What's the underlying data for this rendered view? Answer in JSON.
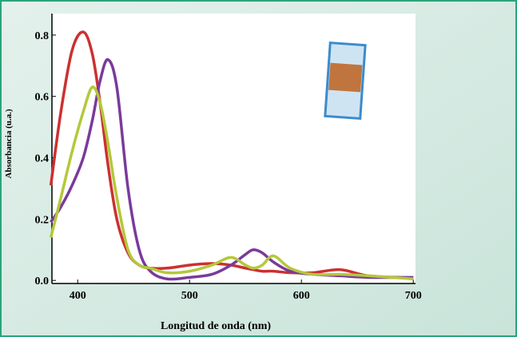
{
  "chart_data": {
    "type": "line",
    "x_label": "Longitud de onda (nm)",
    "y_label": "Absorbancia (u.a.)",
    "x": [
      376,
      385,
      395,
      405,
      413,
      420,
      427,
      435,
      445,
      455,
      465,
      480,
      500,
      520,
      537,
      550,
      557,
      565,
      575,
      590,
      610,
      635,
      660,
      700
    ],
    "series": [
      {
        "color": "#cc3030",
        "values": [
          0.31,
          0.55,
          0.75,
          0.81,
          0.74,
          0.58,
          0.38,
          0.2,
          0.09,
          0.05,
          0.04,
          0.04,
          0.05,
          0.055,
          0.05,
          0.04,
          0.035,
          0.03,
          0.03,
          0.025,
          0.025,
          0.035,
          0.015,
          0.008
        ]
      },
      {
        "color": "#7a3a9c",
        "values": [
          0.19,
          0.24,
          0.31,
          0.4,
          0.52,
          0.65,
          0.72,
          0.63,
          0.3,
          0.1,
          0.03,
          0.005,
          0.01,
          0.02,
          0.05,
          0.085,
          0.1,
          0.09,
          0.06,
          0.03,
          0.02,
          0.015,
          0.01,
          0.01
        ]
      },
      {
        "color": "#b4c83a",
        "values": [
          0.14,
          0.27,
          0.42,
          0.55,
          0.63,
          0.58,
          0.45,
          0.27,
          0.1,
          0.05,
          0.04,
          0.025,
          0.03,
          0.05,
          0.075,
          0.05,
          0.04,
          0.05,
          0.08,
          0.04,
          0.02,
          0.02,
          0.015,
          0.005
        ]
      }
    ],
    "xlim": [
      377,
      702
    ],
    "ylim": [
      -0.01,
      0.87
    ],
    "xticks": [
      400,
      500,
      600,
      700
    ],
    "yticks": [
      {
        "value": 0,
        "label": "0.0"
      },
      0.2,
      0.4,
      0.6,
      0.8
    ]
  }
}
